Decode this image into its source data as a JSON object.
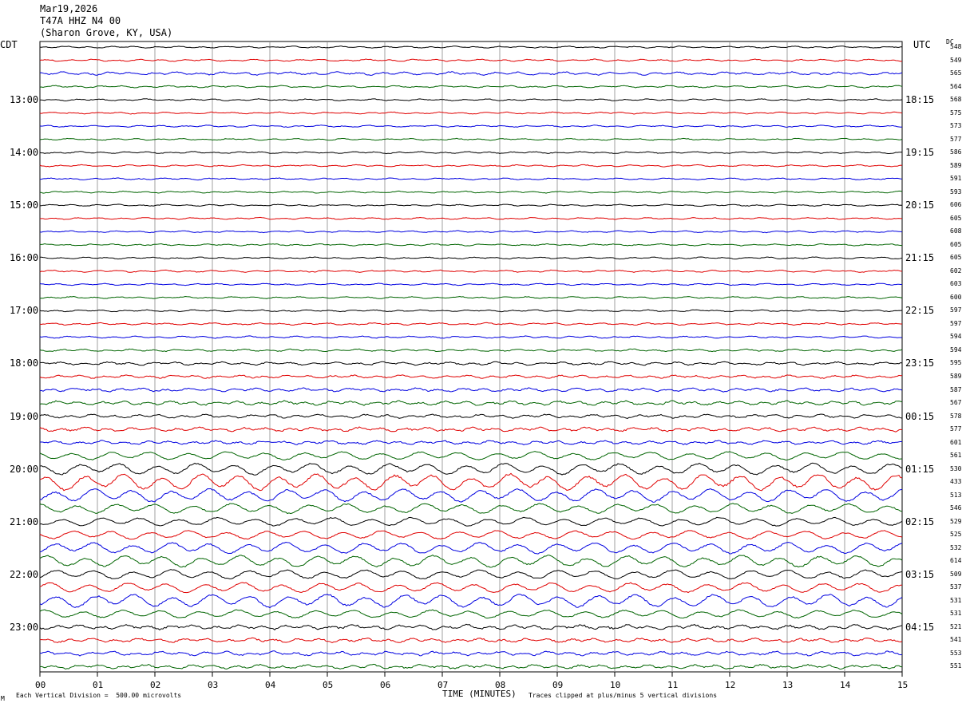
{
  "header": {
    "date": "Mar19,2026",
    "station": "T47A HHZ N4 00",
    "location": "(Sharon Grove, KY, USA)"
  },
  "left_axis_title": "CDT",
  "right_axis_title": "UTC",
  "dc_title": "DC",
  "footer": {
    "scale": "Each Vertical Division =  500.00 microvolts",
    "xlabel": "TIME (MINUTES)",
    "clip": "Traces clipped at plus/minus 5 vertical divisions",
    "corner_mark": "M"
  },
  "colors": {
    "cycle": [
      "#000000",
      "#e00000",
      "#0000e0",
      "#006400"
    ],
    "grid": "#888888"
  },
  "chart_data": {
    "type": "line",
    "title": "",
    "xlabel": "TIME (MINUTES)",
    "xlim": [
      0,
      15
    ],
    "x_ticks": [
      "00",
      "01",
      "02",
      "03",
      "04",
      "05",
      "06",
      "07",
      "08",
      "09",
      "10",
      "11",
      "12",
      "13",
      "14",
      "15"
    ],
    "left_hour_labels": [
      "13:00",
      "14:00",
      "15:00",
      "16:00",
      "17:00",
      "18:00",
      "19:00",
      "20:00",
      "21:00",
      "22:00",
      "23:00"
    ],
    "right_hour_labels": [
      "18:15",
      "19:15",
      "20:15",
      "21:15",
      "22:15",
      "23:15",
      "00:15",
      "01:15",
      "02:15",
      "03:15",
      "04:15"
    ],
    "dc_offsets": [
      548,
      549,
      565,
      564,
      568,
      575,
      573,
      577,
      586,
      589,
      591,
      593,
      606,
      605,
      608,
      605,
      605,
      602,
      603,
      600,
      597,
      597,
      594,
      594,
      595,
      589,
      587,
      567,
      578,
      577,
      601,
      561,
      530,
      433,
      513,
      546,
      529,
      525,
      532,
      614,
      509,
      537,
      531,
      531,
      521,
      541,
      553,
      551
    ],
    "trace_amplitudes": [
      0.7,
      0.8,
      1.2,
      0.8,
      0.7,
      0.7,
      0.7,
      0.7,
      0.7,
      0.7,
      0.7,
      0.7,
      0.7,
      0.7,
      0.7,
      0.7,
      0.7,
      0.8,
      0.7,
      0.7,
      0.7,
      0.8,
      0.8,
      0.9,
      1.2,
      1.2,
      1.4,
      1.6,
      1.4,
      1.6,
      1.4,
      2.5,
      3.5,
      5,
      4,
      3,
      2.6,
      2.6,
      3.4,
      3.6,
      2.8,
      3,
      4,
      2.5,
      1.8,
      1.6,
      1.6,
      1.6
    ]
  }
}
